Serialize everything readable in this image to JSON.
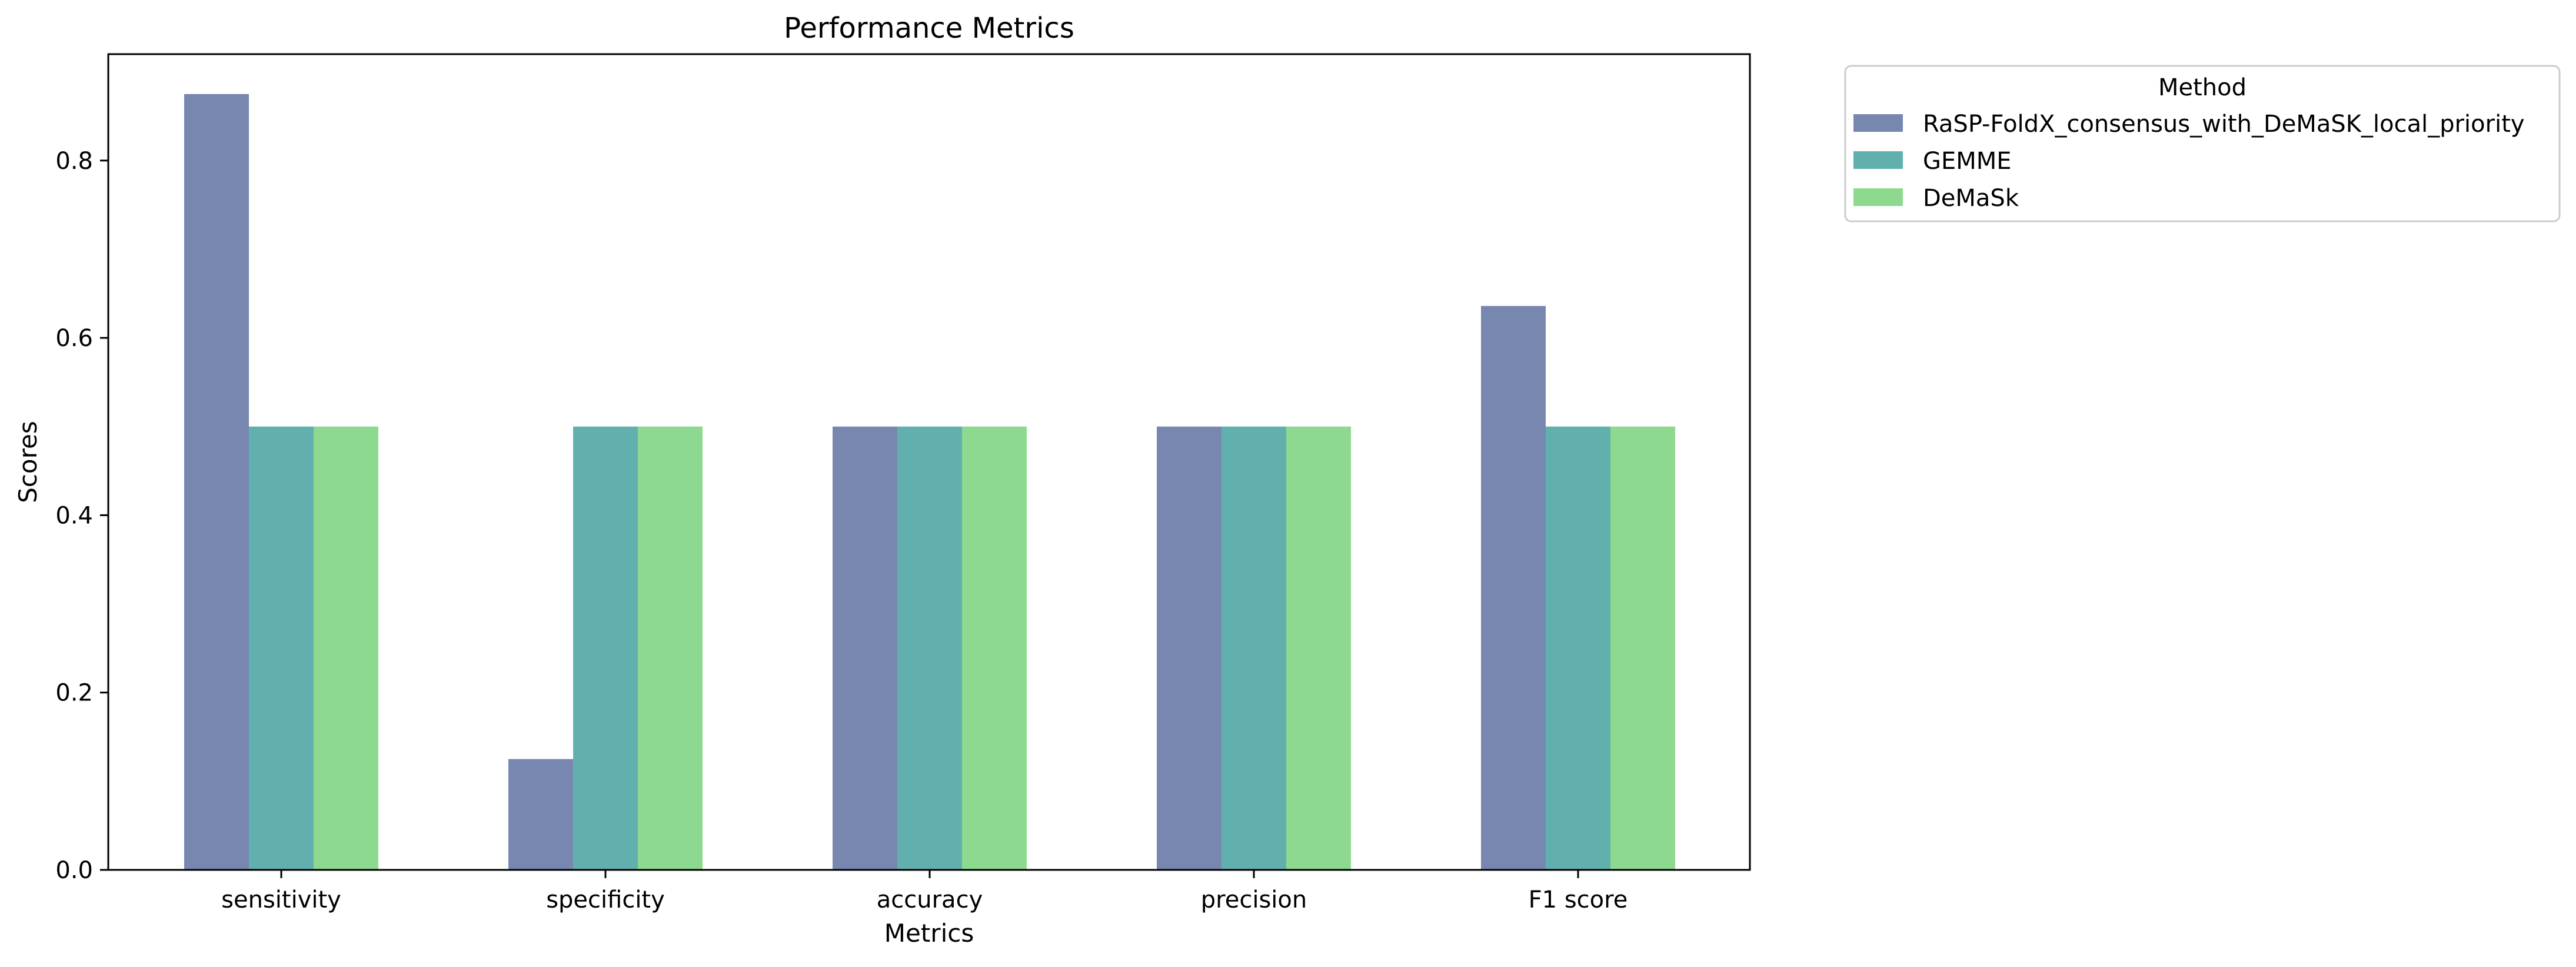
{
  "chart_data": {
    "type": "bar",
    "title": "Performance Metrics",
    "xlabel": "Metrics",
    "ylabel": "Scores",
    "categories": [
      "sensitivity",
      "specificity",
      "accuracy",
      "precision",
      "F1 score"
    ],
    "series": [
      {
        "name": "RaSP-FoldX_consensus_with_DeMaSK_local_priority",
        "color": "#7887b0",
        "values": [
          0.875,
          0.125,
          0.5,
          0.5,
          0.636
        ]
      },
      {
        "name": "GEMME",
        "color": "#62b0ae",
        "values": [
          0.5,
          0.5,
          0.5,
          0.5,
          0.5
        ]
      },
      {
        "name": "DeMaSk",
        "color": "#8dd990",
        "values": [
          0.5,
          0.5,
          0.5,
          0.5,
          0.5
        ]
      }
    ],
    "ylim": [
      0,
      0.92
    ],
    "yticks": [
      0.0,
      0.2,
      0.4,
      0.6,
      0.8
    ],
    "ytick_labels": [
      "0.0",
      "0.2",
      "0.4",
      "0.6",
      "0.8"
    ],
    "grid": false,
    "legend": {
      "title": "Method",
      "placement": "outside-top-right"
    }
  }
}
